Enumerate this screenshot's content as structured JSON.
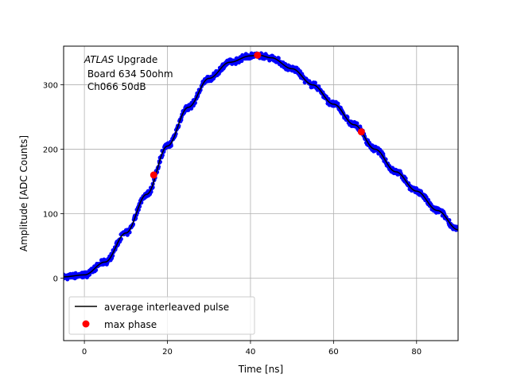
{
  "chart_data": {
    "type": "scatter",
    "xlabel": "Time [ns]",
    "ylabel": "Amplitude [ADC Counts]",
    "xlim": [
      -5,
      90
    ],
    "ylim": [
      -97,
      360
    ],
    "xticks": [
      0,
      20,
      40,
      60,
      80
    ],
    "yticks": [
      0,
      100,
      200,
      300
    ],
    "grid": true,
    "annotation": {
      "line1_italic": "ATLAS",
      "line1_rest": " Upgrade",
      "line2": " Board 634 50ohm",
      "line3": " Ch066 50dB"
    },
    "legend": {
      "location": "lower-left",
      "entries": [
        {
          "label": "average interleaved pulse",
          "marker": "line",
          "color": "#000000"
        },
        {
          "label": "max phase",
          "marker": "dot",
          "color": "#ff0000"
        }
      ]
    },
    "pulse_model": {
      "description_points": [
        {
          "x": -5,
          "y": 2
        },
        {
          "x": 0,
          "y": 5
        },
        {
          "x": 5,
          "y": 25
        },
        {
          "x": 10,
          "y": 70
        },
        {
          "x": 15,
          "y": 130
        },
        {
          "x": 20,
          "y": 205
        },
        {
          "x": 25,
          "y": 265
        },
        {
          "x": 30,
          "y": 310
        },
        {
          "x": 35,
          "y": 335
        },
        {
          "x": 40,
          "y": 345
        },
        {
          "x": 42,
          "y": 346
        },
        {
          "x": 45,
          "y": 342
        },
        {
          "x": 50,
          "y": 325
        },
        {
          "x": 55,
          "y": 300
        },
        {
          "x": 60,
          "y": 270
        },
        {
          "x": 65,
          "y": 238
        },
        {
          "x": 70,
          "y": 200
        },
        {
          "x": 75,
          "y": 165
        },
        {
          "x": 80,
          "y": 135
        },
        {
          "x": 85,
          "y": 105
        },
        {
          "x": 90,
          "y": 75
        }
      ]
    },
    "series": [
      {
        "name": "max phase",
        "color": "#ff0000",
        "points": [
          {
            "x": 16.7,
            "y": 160
          },
          {
            "x": 41.7,
            "y": 346
          },
          {
            "x": 66.7,
            "y": 227
          }
        ]
      }
    ],
    "colors": {
      "samples": "#0000ff",
      "average": "#000000",
      "max_phase": "#ff0000",
      "grid": "#b0b0b0"
    }
  }
}
